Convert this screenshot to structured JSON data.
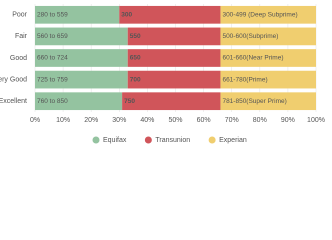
{
  "chart_data": {
    "type": "stacked-barh",
    "categories": [
      "Poor",
      "Fair",
      "Good",
      "Very Good",
      "Excellent"
    ],
    "series": [
      {
        "name": "Equifax",
        "color": "#94c3a0",
        "text_color": "#ffffff",
        "values": [
          30,
          33,
          33,
          33,
          31
        ],
        "labels": [
          "280 to 559",
          "560 to 659",
          "660 to 724",
          "725 to 759",
          "760 to 850"
        ]
      },
      {
        "name": "Transunion",
        "color": "#d0555a",
        "text_color": "#ffffff",
        "values": [
          36,
          33,
          33,
          33,
          35
        ],
        "labels": [
          "300",
          "550",
          "650",
          "700",
          "750"
        ]
      },
      {
        "name": "Experian",
        "color": "#f0ce6f",
        "text_color": "#555555",
        "values": [
          34,
          34,
          34,
          34,
          34
        ],
        "labels": [
          "300-499 (Deep Subprime)",
          "500-600(Subprime)",
          "601-660(Near Prime)",
          "661-780(Prime)",
          "781-850(Super Prime)"
        ]
      }
    ],
    "xlim": [
      0,
      100
    ],
    "xticks": [
      {
        "value": 0,
        "label": "0%"
      },
      {
        "value": 10,
        "label": "10%"
      },
      {
        "value": 20,
        "label": "20%"
      },
      {
        "value": 30,
        "label": "30%"
      },
      {
        "value": 40,
        "label": "40%"
      },
      {
        "value": 50,
        "label": "50%"
      },
      {
        "value": 60,
        "label": "60%"
      },
      {
        "value": 70,
        "label": "70%"
      },
      {
        "value": 80,
        "label": "80%"
      },
      {
        "value": 90,
        "label": "90%"
      },
      {
        "value": 100,
        "label": "100%"
      }
    ],
    "grid": true
  }
}
